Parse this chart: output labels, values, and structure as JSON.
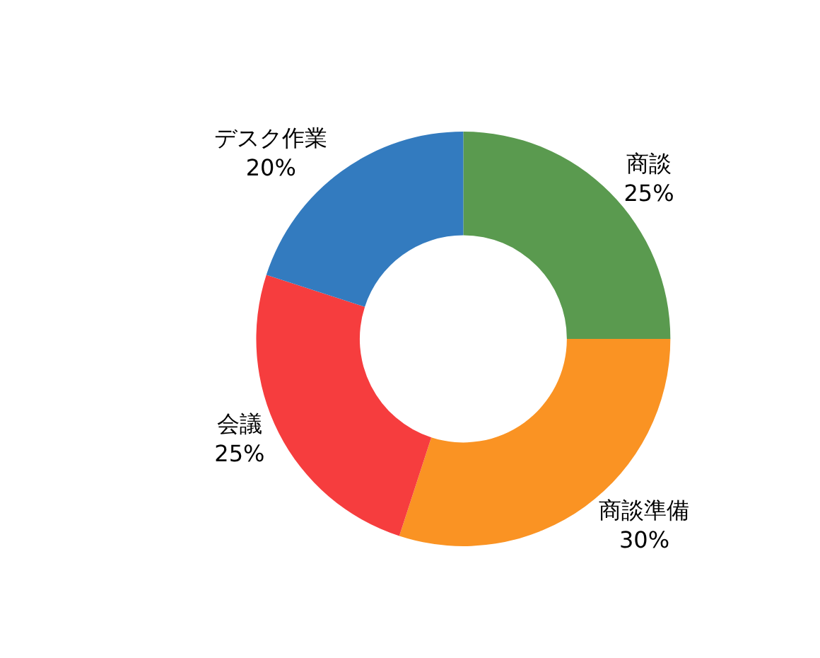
{
  "chart_data": {
    "type": "donut",
    "categories": [
      "商談",
      "商談準備",
      "会議",
      "デスク作業"
    ],
    "values": [
      25,
      30,
      25,
      20
    ],
    "value_labels": [
      "25%",
      "30%",
      "25%",
      "20%"
    ],
    "colors": [
      "#5a9a4f",
      "#fa9323",
      "#f63d3e",
      "#337bbf"
    ]
  }
}
